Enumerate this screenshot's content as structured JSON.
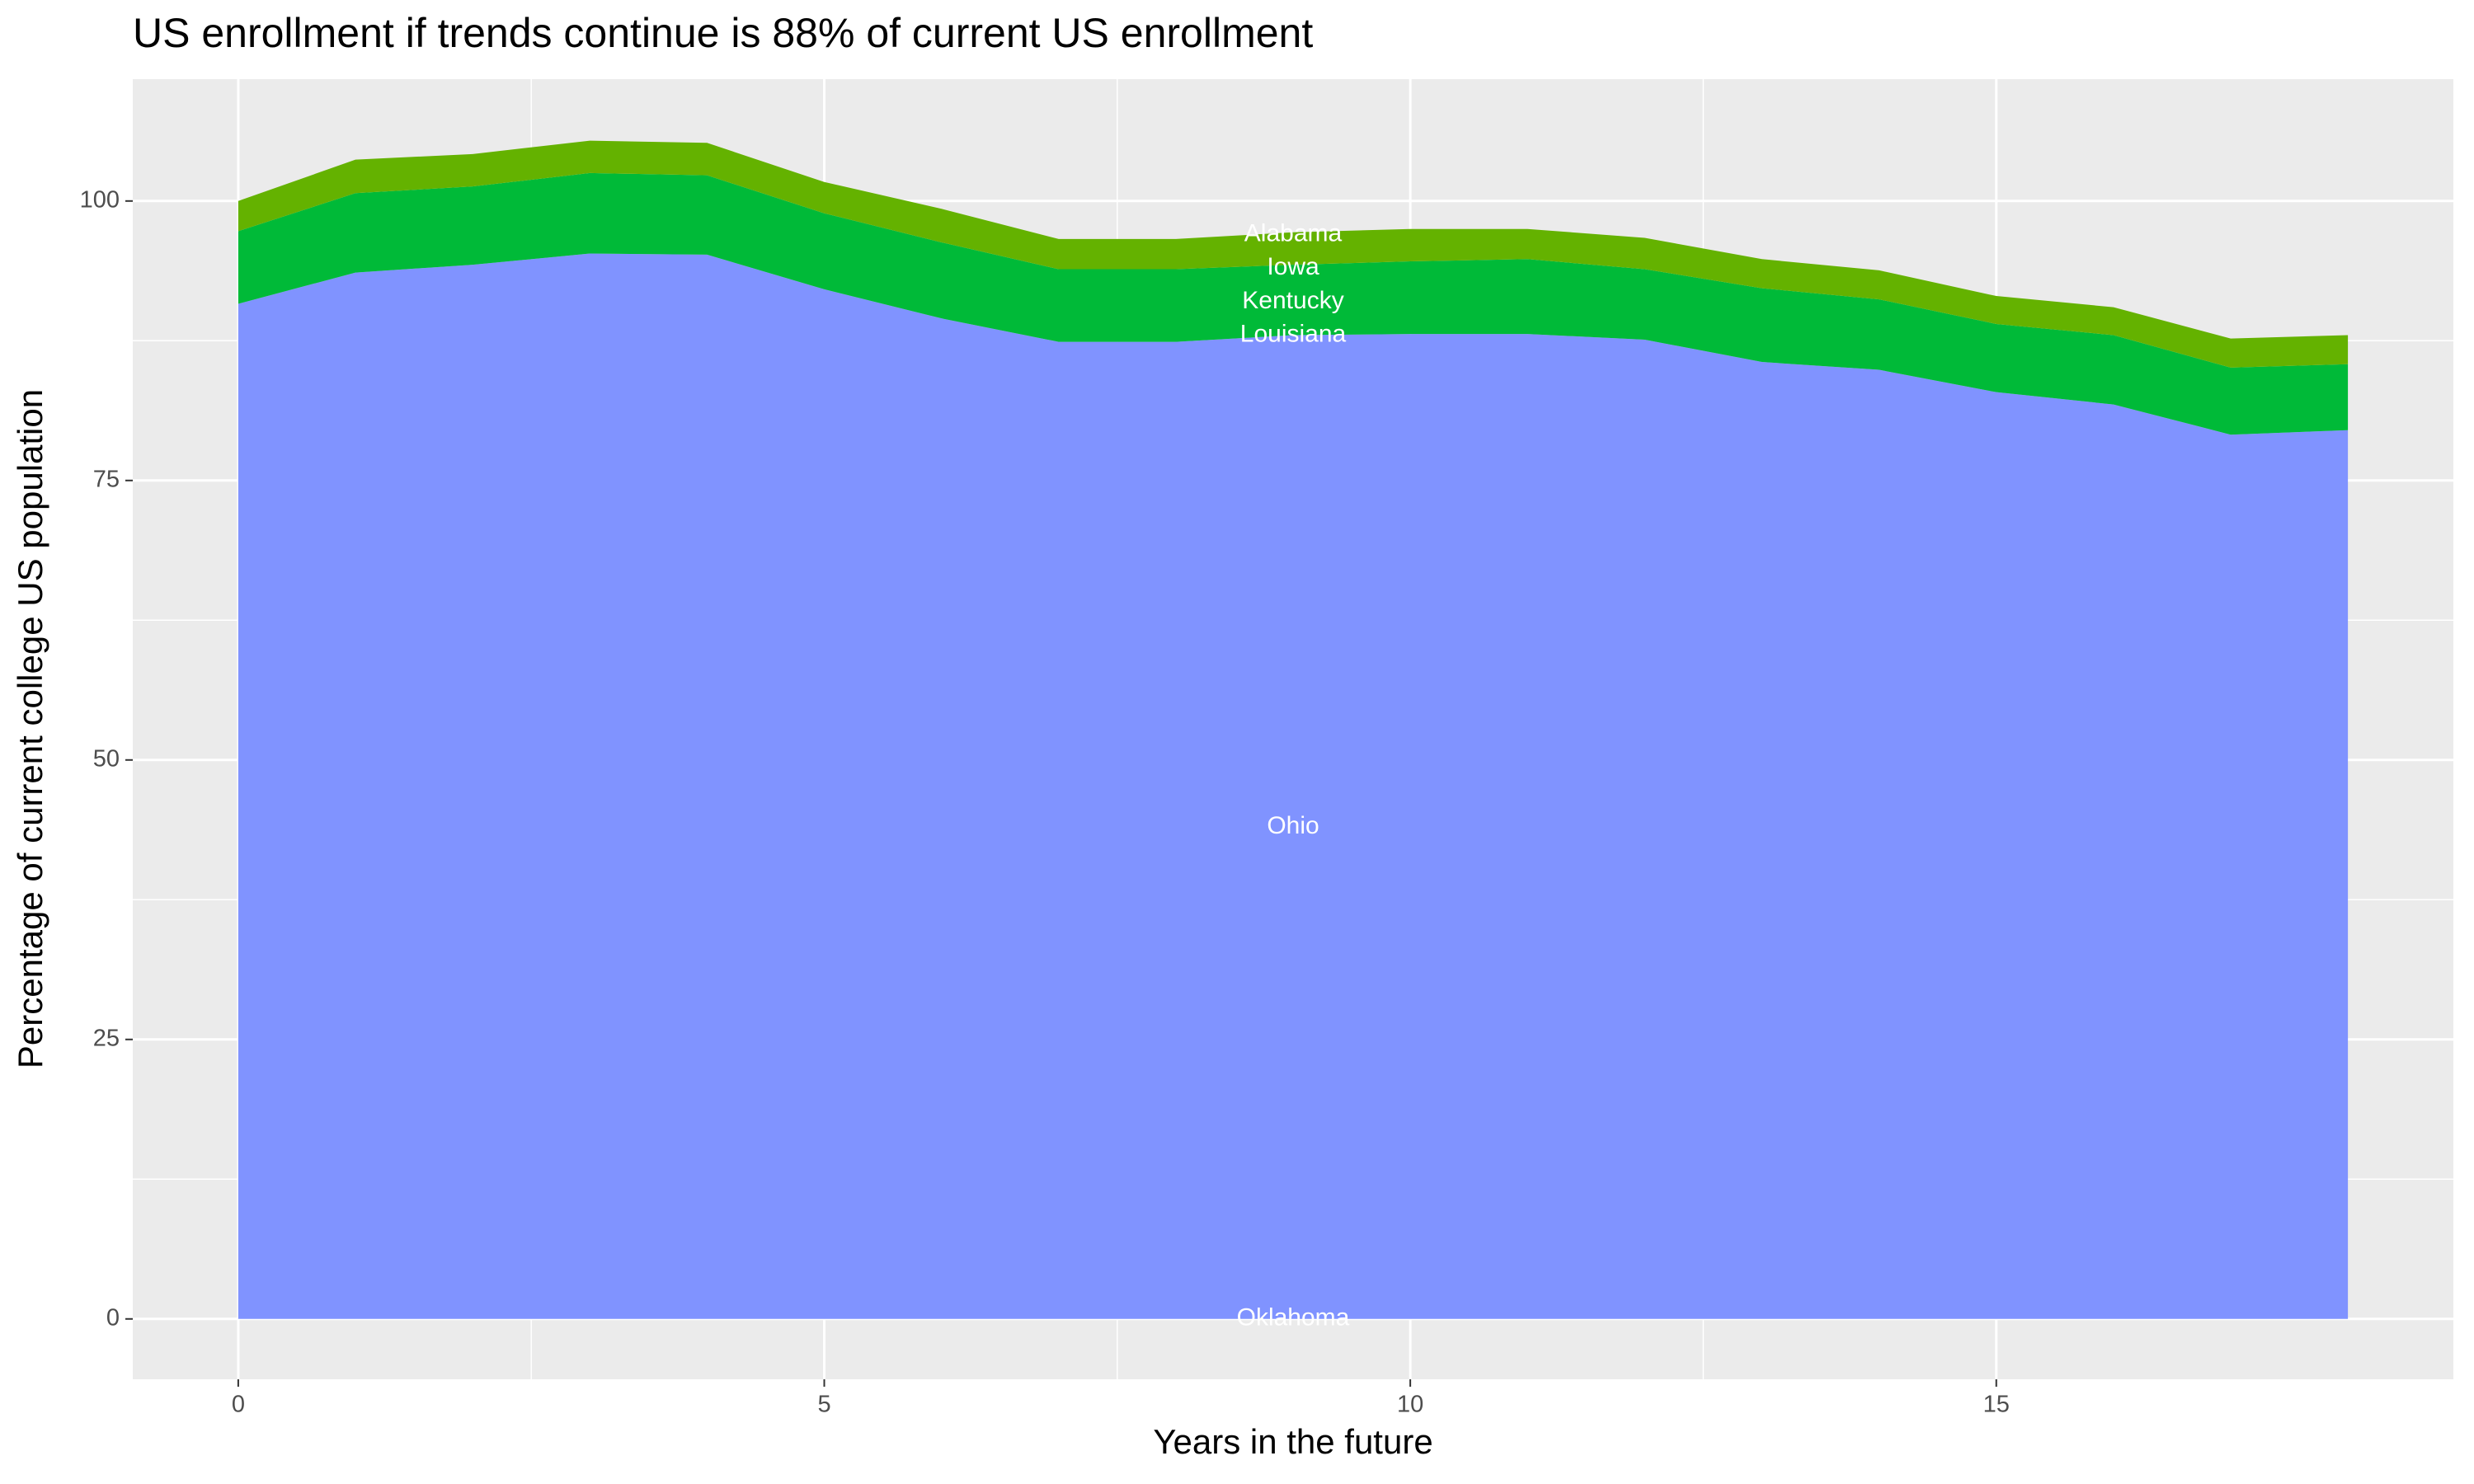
{
  "chart_data": {
    "type": "stacked_area",
    "title": "US enrollment if trends continue is 88% of current US enrollment",
    "x_label": "Years in the future",
    "y_label": "Percentage of current college US population",
    "x": [
      0,
      1,
      2,
      3,
      4,
      5,
      6,
      7,
      8,
      9,
      10,
      11,
      12,
      13,
      14,
      15,
      16,
      17,
      18
    ],
    "series": [
      {
        "color": "#8093FF",
        "values": [
          90.8,
          93.6,
          94.3,
          95.3,
          95.2,
          92.1,
          89.5,
          87.4,
          87.4,
          88.0,
          88.1,
          88.1,
          87.6,
          85.6,
          84.9,
          82.9,
          81.8,
          79.1,
          79.5
        ]
      },
      {
        "color": "#00BA38",
        "values": [
          6.5,
          7.1,
          7.0,
          7.2,
          7.1,
          6.8,
          6.8,
          6.5,
          6.5,
          6.3,
          6.5,
          6.7,
          6.3,
          6.6,
          6.3,
          6.1,
          6.2,
          6.0,
          5.9
        ]
      },
      {
        "color": "#64B200",
        "values": [
          2.7,
          3.0,
          2.9,
          2.9,
          2.9,
          2.8,
          3.0,
          2.7,
          2.7,
          2.9,
          2.9,
          2.7,
          2.8,
          2.6,
          2.6,
          2.5,
          2.5,
          2.6,
          2.6
        ]
      }
    ],
    "annotations": [
      {
        "text": "Alabama",
        "x": 9,
        "y": 97
      },
      {
        "text": "Iowa",
        "x": 9,
        "y": 94
      },
      {
        "text": "Kentucky",
        "x": 9,
        "y": 91
      },
      {
        "text": "Louisiana",
        "x": 9,
        "y": 88
      },
      {
        "text": "Ohio",
        "x": 9,
        "y": 44
      },
      {
        "text": "Oklahoma",
        "x": 9,
        "y": 0
      }
    ],
    "xlim": [
      -0.9,
      18.9
    ],
    "xticks": [
      0,
      5,
      10,
      15
    ],
    "ylim": [
      -5.4,
      110.9
    ],
    "yticks": [
      0,
      25,
      50,
      75,
      100
    ],
    "grid": true
  }
}
